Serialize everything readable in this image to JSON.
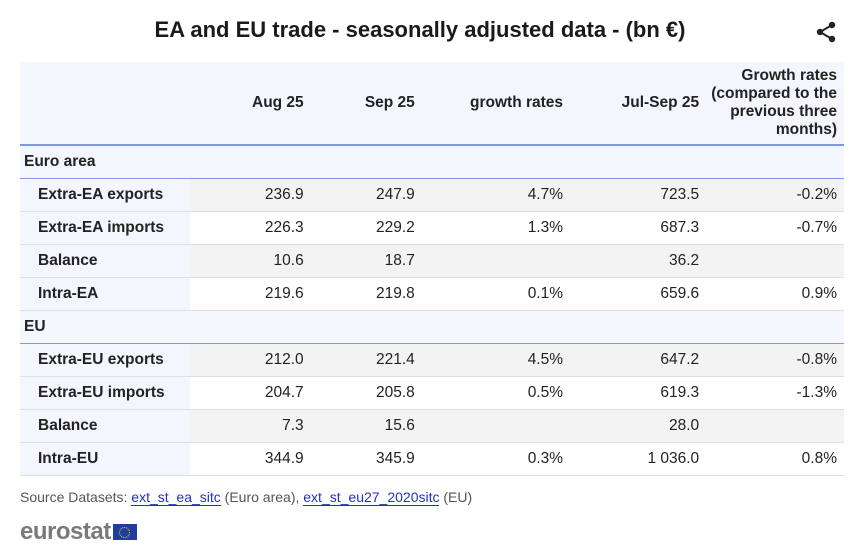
{
  "title": "EA and EU trade - seasonally adjusted data - (bn €)",
  "columns": [
    "",
    "Aug 25",
    "Sep 25",
    "growth rates",
    "Jul-Sep 25",
    "Growth rates (compared to the previous three months)"
  ],
  "sections": [
    {
      "name": "Euro area",
      "rows": [
        {
          "label": "Extra-EA exports",
          "values": [
            "236.9",
            "247.9",
            "4.7%",
            "723.5",
            "-0.2%"
          ]
        },
        {
          "label": "Extra-EA imports",
          "values": [
            "226.3",
            "229.2",
            "1.3%",
            "687.3",
            "-0.7%"
          ]
        },
        {
          "label": "Balance",
          "values": [
            "10.6",
            "18.7",
            "",
            "36.2",
            ""
          ]
        },
        {
          "label": "Intra-EA",
          "values": [
            "219.6",
            "219.8",
            "0.1%",
            "659.6",
            "0.9%"
          ]
        }
      ]
    },
    {
      "name": "EU",
      "rows": [
        {
          "label": "Extra-EU exports",
          "values": [
            "212.0",
            "221.4",
            "4.5%",
            "647.2",
            "-0.8%"
          ]
        },
        {
          "label": "Extra-EU imports",
          "values": [
            "204.7",
            "205.8",
            "0.5%",
            "619.3",
            "-1.3%"
          ]
        },
        {
          "label": "Balance",
          "values": [
            "7.3",
            "15.6",
            "",
            "28.0",
            ""
          ]
        },
        {
          "label": "Intra-EU",
          "values": [
            "344.9",
            "345.9",
            "0.3%",
            "1 036.0",
            "0.8%"
          ]
        }
      ]
    }
  ],
  "source": {
    "prefix": "Source Datasets: ",
    "link1": "ext_st_ea_sitc",
    "text1": " (Euro area), ",
    "link2": "ext_st_eu27_2020sitc",
    "text2": " (EU)"
  },
  "logo": "eurostat"
}
